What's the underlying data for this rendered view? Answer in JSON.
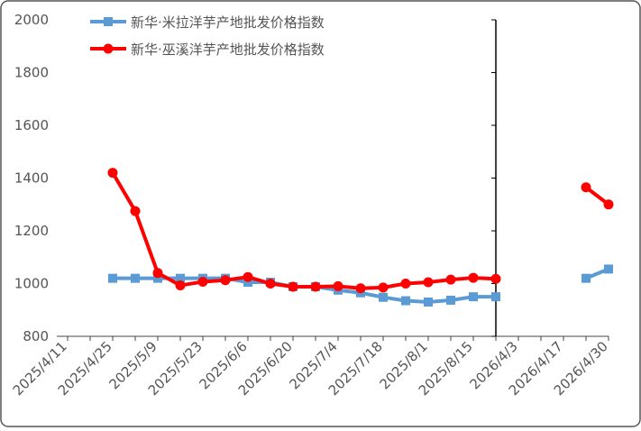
{
  "chart_data": {
    "type": "line",
    "categories": [
      "2025/4/11",
      null,
      "2025/4/25",
      null,
      "2025/5/9",
      null,
      "2025/5/23",
      null,
      "2025/6/6",
      null,
      "2025/6/20",
      null,
      "2025/7/4",
      null,
      "2025/7/18",
      null,
      "2025/8/1",
      null,
      "2025/8/15",
      null,
      "2026/4/3",
      null,
      "2026/4/17",
      null,
      "2026/4/30"
    ],
    "series": [
      {
        "name": "新华·米拉洋芋产地批发价格指数",
        "color": "#5b9bd5",
        "marker": "square",
        "values": [
          null,
          null,
          1020,
          1020,
          1020,
          1020,
          1020,
          1020,
          1005,
          1005,
          988,
          988,
          975,
          965,
          948,
          935,
          930,
          937,
          950,
          950,
          null,
          null,
          null,
          1020,
          1055
        ]
      },
      {
        "name": "新华·巫溪洋芋产地批发价格指数",
        "color": "#ff0000",
        "marker": "circle",
        "values": [
          null,
          null,
          1420,
          1275,
          1040,
          993,
          1007,
          1013,
          1025,
          1000,
          988,
          988,
          990,
          982,
          985,
          1000,
          1005,
          1015,
          1022,
          1018,
          null,
          null,
          null,
          1365,
          1300
        ]
      }
    ],
    "ylim": [
      800,
      2000
    ],
    "yticks": [
      800,
      1000,
      1200,
      1400,
      1600,
      1800,
      2000
    ],
    "grid": false
  }
}
